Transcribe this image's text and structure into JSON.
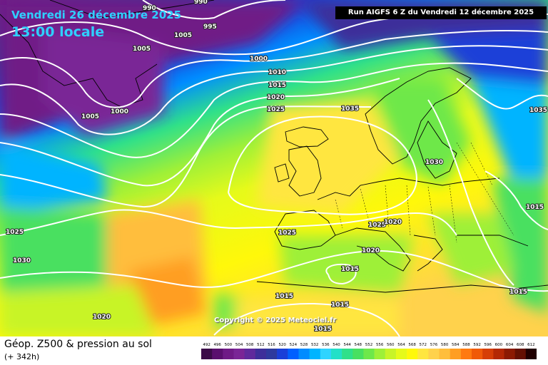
{
  "header": {
    "date": "Vendredi 26 décembre 2025",
    "time": "13:00 locale",
    "run": "Run AIGFS 6 Z du Vendredi 12 décembre 2025"
  },
  "map": {
    "copyright": "Copyright © 2025 Meteociel.fr",
    "isobar_labels": [
      "990",
      "990",
      "995",
      "1005",
      "1005",
      "1000",
      "1005",
      "1000",
      "1010",
      "1015",
      "1020",
      "1025",
      "1035",
      "1035",
      "1030",
      "1015",
      "1025",
      "1030",
      "1025",
      "1025",
      "1020",
      "1020",
      "1015",
      "1015",
      "1015",
      "1015",
      "1020",
      "1015"
    ]
  },
  "footer": {
    "title": "Géop. Z500 & pression au sol",
    "subtitle": "(+ 342h)"
  },
  "legend": {
    "values": [
      "492",
      "496",
      "500",
      "504",
      "508",
      "512",
      "516",
      "520",
      "524",
      "528",
      "532",
      "536",
      "540",
      "544",
      "548",
      "552",
      "556",
      "560",
      "564",
      "568",
      "572",
      "576",
      "580",
      "584",
      "588",
      "592",
      "596",
      "600",
      "604",
      "608",
      "612"
    ],
    "colors": [
      "#3b0b48",
      "#5a0f6e",
      "#6f1a86",
      "#7a2596",
      "#5f2a9c",
      "#3d2f9a",
      "#2e3a9e",
      "#1a3fd8",
      "#0060ff",
      "#008cff",
      "#00b4ff",
      "#2fd4ff",
      "#22e0c8",
      "#2fe08a",
      "#48e060",
      "#6ee84a",
      "#9ef038",
      "#c8f428",
      "#e6fa1a",
      "#fff80a",
      "#ffe640",
      "#ffd24c",
      "#ffbe3c",
      "#ff9e22",
      "#ff7a10",
      "#f05a08",
      "#d63e06",
      "#b42804",
      "#8c1a02",
      "#641002",
      "#200000"
    ]
  }
}
